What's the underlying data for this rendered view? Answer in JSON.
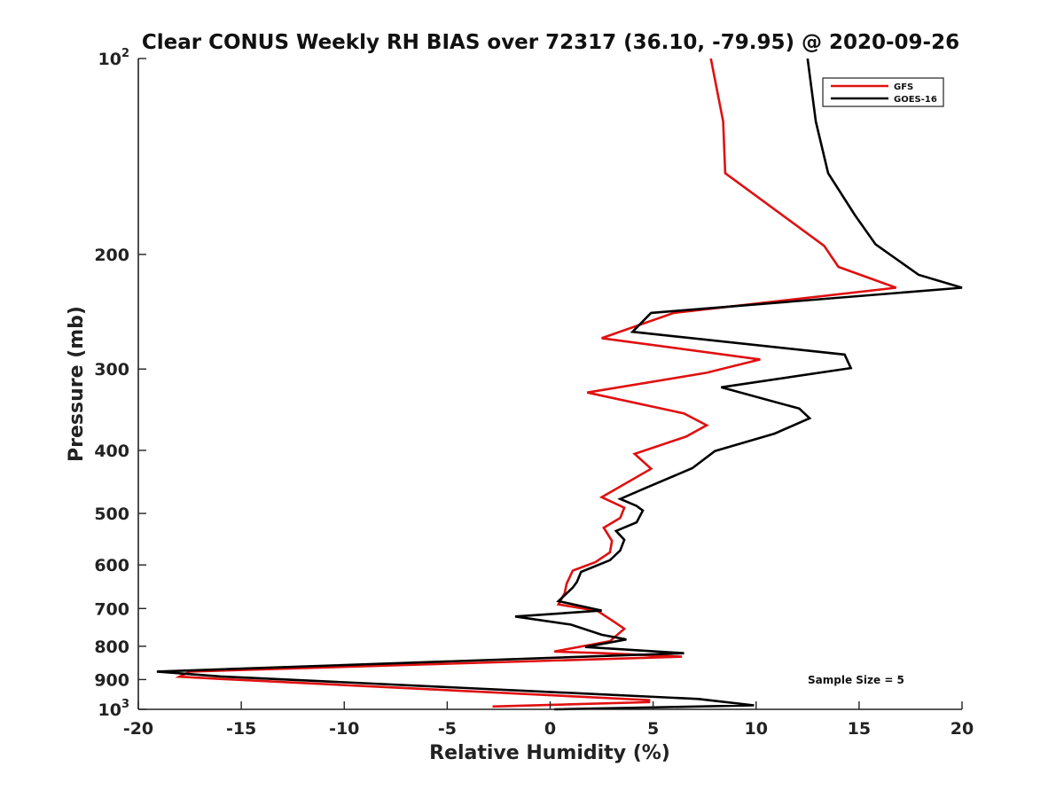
{
  "chart_data": {
    "type": "line",
    "title": "Clear CONUS Weekly RH BIAS over 72317 (36.10, -79.95) @ 2020-09-26",
    "xlabel": "Relative Humidity (%)",
    "ylabel": "Pressure (mb)",
    "xlim": [
      -20,
      20
    ],
    "ylim": [
      100,
      1000
    ],
    "yscale": "log",
    "y_reversed": true,
    "grid": false,
    "legend_position": "top-right",
    "annotation": "Sample Size = 5",
    "x_ticks": [
      "-20",
      "-15",
      "-10",
      "-5",
      "0",
      "5",
      "10",
      "15",
      "20"
    ],
    "y_ticks": [
      {
        "value": 100,
        "base": "10",
        "exp": "2"
      },
      {
        "value": 200,
        "base": "200",
        "exp": ""
      },
      {
        "value": 300,
        "base": "300",
        "exp": ""
      },
      {
        "value": 400,
        "base": "400",
        "exp": ""
      },
      {
        "value": 500,
        "base": "500",
        "exp": ""
      },
      {
        "value": 600,
        "base": "600",
        "exp": ""
      },
      {
        "value": 700,
        "base": "700",
        "exp": ""
      },
      {
        "value": 800,
        "base": "800",
        "exp": ""
      },
      {
        "value": 900,
        "base": "900",
        "exp": ""
      },
      {
        "value": 1000,
        "base": "10",
        "exp": "3"
      }
    ],
    "series": [
      {
        "name": "GFS",
        "color": "#e01010",
        "points": [
          [
            7.8,
            100
          ],
          [
            8.4,
            125
          ],
          [
            8.5,
            150
          ],
          [
            13.3,
            194
          ],
          [
            14.0,
            209
          ],
          [
            16.8,
            225
          ],
          [
            6.0,
            246
          ],
          [
            2.5,
            269
          ],
          [
            10.2,
            290
          ],
          [
            7.6,
            304
          ],
          [
            1.8,
            326
          ],
          [
            6.5,
            351
          ],
          [
            7.6,
            366
          ],
          [
            6.6,
            381
          ],
          [
            4.1,
            405
          ],
          [
            4.9,
            427
          ],
          [
            2.5,
            472
          ],
          [
            3.6,
            490
          ],
          [
            3.4,
            508
          ],
          [
            2.6,
            526
          ],
          [
            3.0,
            551
          ],
          [
            2.9,
            574
          ],
          [
            2.2,
            594
          ],
          [
            1.1,
            612
          ],
          [
            0.8,
            641
          ],
          [
            0.7,
            663
          ],
          [
            0.4,
            690
          ],
          [
            2.3,
            706
          ],
          [
            3.0,
            730
          ],
          [
            3.6,
            752
          ],
          [
            2.9,
            786
          ],
          [
            0.2,
            815
          ],
          [
            2.6,
            820
          ],
          [
            6.4,
            830
          ],
          [
            -17.5,
            875
          ],
          [
            -18.0,
            891
          ],
          [
            -15.7,
            899
          ],
          [
            4.8,
            968
          ],
          [
            4.8,
            975
          ],
          [
            -2.8,
            990
          ]
        ]
      },
      {
        "name": "GOES-16",
        "color": "#000000",
        "points": [
          [
            12.5,
            100
          ],
          [
            12.9,
            125
          ],
          [
            13.5,
            150
          ],
          [
            14.8,
            174
          ],
          [
            15.8,
            193
          ],
          [
            17.9,
            215
          ],
          [
            20.0,
            225
          ],
          [
            4.9,
            246
          ],
          [
            4.0,
            263
          ],
          [
            14.3,
            285
          ],
          [
            14.6,
            299
          ],
          [
            8.3,
            320
          ],
          [
            12.1,
            345
          ],
          [
            12.6,
            357
          ],
          [
            10.9,
            377
          ],
          [
            8.0,
            401
          ],
          [
            6.9,
            426
          ],
          [
            4.7,
            456
          ],
          [
            3.4,
            475
          ],
          [
            4.2,
            487
          ],
          [
            4.5,
            495
          ],
          [
            4.2,
            516
          ],
          [
            3.2,
            532
          ],
          [
            3.6,
            549
          ],
          [
            3.4,
            570
          ],
          [
            2.9,
            590
          ],
          [
            1.5,
            615
          ],
          [
            1.3,
            637
          ],
          [
            1.1,
            650
          ],
          [
            0.4,
            682
          ],
          [
            2.5,
            705
          ],
          [
            -1.7,
            720
          ],
          [
            1.0,
            741
          ],
          [
            2.5,
            768
          ],
          [
            3.7,
            781
          ],
          [
            1.7,
            802
          ],
          [
            6.5,
            820
          ],
          [
            -19.1,
            875
          ],
          [
            -16.0,
            890
          ],
          [
            7.2,
            964
          ],
          [
            9.9,
            986
          ],
          [
            0.2,
            1000
          ]
        ]
      }
    ]
  }
}
